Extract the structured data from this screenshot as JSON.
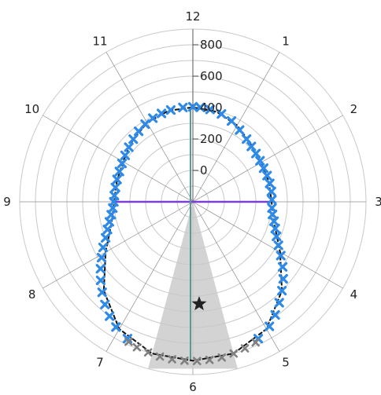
{
  "chart_data": {
    "type": "scatter",
    "coordinate_system": "polar",
    "angular_axis": {
      "labels": [
        "12",
        "1",
        "2",
        "3",
        "4",
        "5",
        "6",
        "7",
        "8",
        "9",
        "10",
        "11"
      ],
      "direction": "clockwise",
      "zero_at": "top"
    },
    "radial_axis": {
      "range": [
        -200,
        900
      ],
      "ticks": [
        0,
        200,
        400,
        600,
        800
      ],
      "grid": true
    },
    "grid": true,
    "legend": null,
    "colors": {
      "points": "#2e8ae6",
      "fit_curve": "#111111",
      "vertical_line": "#5a9a92",
      "horizontal_line": "#7b3fd6",
      "sector_fill": "#c8c8c8",
      "sector_points": "#808080",
      "star": "#222222",
      "grid": "#c9c9c9",
      "spoke": "#8c8c8c"
    },
    "series": [
      {
        "kind": "scatter",
        "marker": "x",
        "points_clock_r": [
          [
            0.0,
            405
          ],
          [
            0.15,
            403
          ],
          [
            0.35,
            398
          ],
          [
            0.6,
            388
          ],
          [
            0.85,
            370
          ],
          [
            1.1,
            345
          ],
          [
            1.35,
            325
          ],
          [
            1.55,
            312
          ],
          [
            1.75,
            305
          ],
          [
            1.95,
            300
          ],
          [
            2.15,
            298
          ],
          [
            2.35,
            300
          ],
          [
            2.55,
            302
          ],
          [
            2.75,
            303
          ],
          [
            2.95,
            302
          ],
          [
            3.15,
            304
          ],
          [
            3.3,
            312
          ],
          [
            3.45,
            330
          ],
          [
            3.6,
            350
          ],
          [
            3.75,
            375
          ],
          [
            3.9,
            410
          ],
          [
            4.05,
            455
          ],
          [
            4.2,
            505
          ],
          [
            4.35,
            555
          ],
          [
            4.5,
            600
          ],
          [
            4.65,
            645
          ],
          [
            4.8,
            690
          ],
          [
            4.95,
            730
          ],
          [
            5.15,
            765
          ],
          [
            6.85,
            765
          ],
          [
            7.05,
            735
          ],
          [
            7.2,
            700
          ],
          [
            7.35,
            660
          ],
          [
            7.5,
            615
          ],
          [
            7.65,
            570
          ],
          [
            7.8,
            525
          ],
          [
            7.95,
            480
          ],
          [
            8.1,
            440
          ],
          [
            8.25,
            400
          ],
          [
            8.4,
            370
          ],
          [
            8.55,
            345
          ],
          [
            8.7,
            325
          ],
          [
            8.85,
            310
          ],
          [
            9.0,
            302
          ],
          [
            9.15,
            300
          ],
          [
            9.35,
            300
          ],
          [
            9.55,
            302
          ],
          [
            9.75,
            305
          ],
          [
            9.95,
            312
          ],
          [
            10.15,
            322
          ],
          [
            10.35,
            335
          ],
          [
            10.55,
            350
          ],
          [
            10.75,
            366
          ],
          [
            10.95,
            380
          ],
          [
            11.15,
            390
          ],
          [
            11.35,
            397
          ],
          [
            11.55,
            401
          ],
          [
            11.8,
            404
          ]
        ]
      },
      {
        "kind": "fit_curve",
        "points_clock_r": [
          [
            0,
            402
          ],
          [
            0.5,
            392
          ],
          [
            1,
            362
          ],
          [
            1.5,
            320
          ],
          [
            2,
            300
          ],
          [
            2.5,
            299
          ],
          [
            3,
            300
          ],
          [
            3.5,
            335
          ],
          [
            4,
            440
          ],
          [
            4.5,
            600
          ],
          [
            5,
            735
          ],
          [
            5.5,
            800
          ],
          [
            6,
            812
          ],
          [
            6.5,
            800
          ],
          [
            7,
            735
          ],
          [
            7.5,
            600
          ],
          [
            8,
            440
          ],
          [
            8.5,
            335
          ],
          [
            9,
            300
          ],
          [
            9.5,
            300
          ],
          [
            10,
            312
          ],
          [
            10.5,
            345
          ],
          [
            11,
            382
          ],
          [
            11.5,
            400
          ],
          [
            12,
            402
          ]
        ]
      },
      {
        "kind": "sector_scatter",
        "marker": "x",
        "points_clock_r": [
          [
            5.2,
            780
          ],
          [
            5.35,
            790
          ],
          [
            5.5,
            800
          ],
          [
            5.65,
            808
          ],
          [
            5.8,
            812
          ],
          [
            5.95,
            814
          ],
          [
            6.1,
            813
          ],
          [
            6.25,
            811
          ],
          [
            6.4,
            807
          ],
          [
            6.55,
            800
          ],
          [
            6.7,
            792
          ],
          [
            6.82,
            780
          ]
        ]
      }
    ],
    "sector": {
      "from_clock": 5.5,
      "to_clock": 6.5,
      "r_max": 900
    },
    "star": {
      "clock": 6.0,
      "r": 450
    },
    "vertical_line": {
      "clock": 6.1,
      "r_top": 400,
      "r_bottom": 805
    },
    "horizontal_line": {
      "from_clock": 9,
      "to_clock": 3,
      "r": 300
    }
  }
}
